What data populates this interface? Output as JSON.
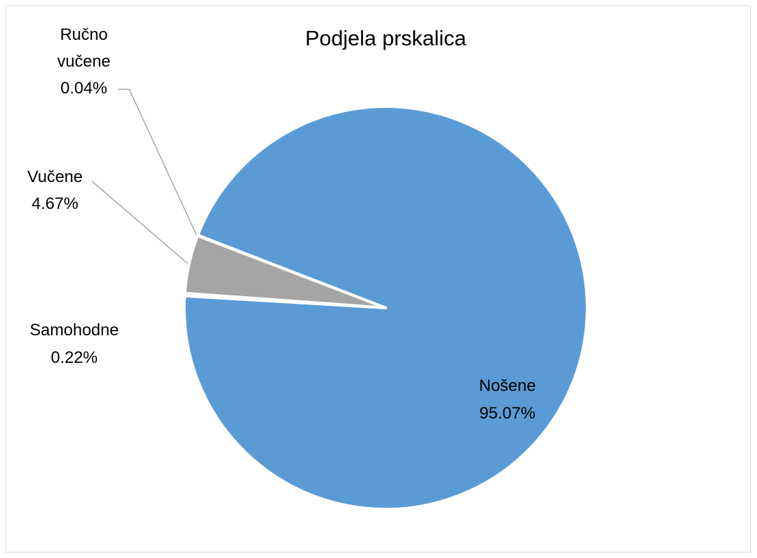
{
  "chart_data": {
    "type": "pie",
    "title": "Podjela prskalica",
    "slices": [
      {
        "name": "Nošene",
        "value": 95.07,
        "label": "95.07%",
        "color": "#5b9bd5"
      },
      {
        "name": "Samohodne",
        "value": 0.22,
        "label": "0.22%",
        "color": "#ed7d31"
      },
      {
        "name": "Vučene",
        "value": 4.67,
        "label": "4.67%",
        "color": "#a5a5a5"
      },
      {
        "name": "Ručno vučene",
        "value": 0.04,
        "label": "0.04%",
        "color": "#ffc000"
      }
    ],
    "legend": "none"
  }
}
